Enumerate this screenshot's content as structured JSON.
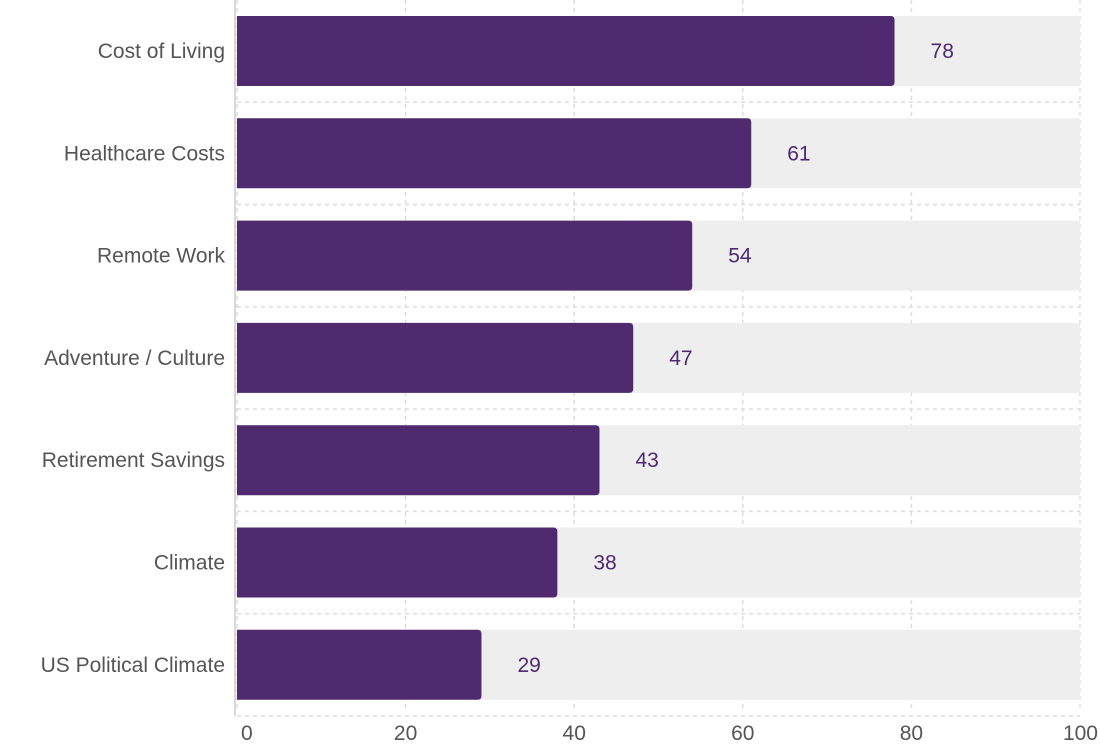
{
  "chart_data": {
    "type": "bar",
    "orientation": "horizontal",
    "categories": [
      "Cost of Living",
      "Healthcare Costs",
      "Remote Work",
      "Adventure / Culture",
      "Retirement Savings",
      "Climate",
      "US Political Climate"
    ],
    "values": [
      78,
      61,
      54,
      47,
      43,
      38,
      29
    ],
    "xlim": [
      0,
      100
    ],
    "xticks": [
      "0",
      "20",
      "40",
      "60",
      "80",
      "100"
    ],
    "grid": true,
    "title": "",
    "xlabel": "",
    "ylabel": "",
    "colors": {
      "bar": "#4f2a6e",
      "track": "#eeeeee",
      "value_label": "#4f2a6e",
      "grid": "#dddddd",
      "axis": "#cccccc"
    }
  }
}
